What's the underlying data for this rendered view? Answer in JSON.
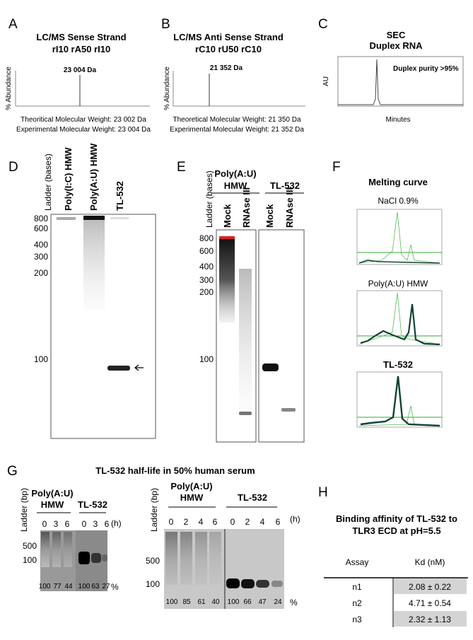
{
  "a": {
    "label": "A",
    "title": [
      "LC/MS Sense Strand",
      "rI10 rA50 rI10"
    ],
    "peak_label": "23 004 Da",
    "y_label": "% Abundance",
    "notes": [
      "Theoritical Molecular Weight: 23 002 Da",
      "Experimental Molecular Weight: 23 004 Da"
    ]
  },
  "b": {
    "label": "B",
    "title": [
      "LC/MS Anti Sense Strand",
      "rC10 rU50 rC10"
    ],
    "peak_label": "21 352 Da",
    "y_label": "% Abundance",
    "notes": [
      "Theoretical Molecular Weight: 21 350 Da",
      "Experimental Molecular Weight: 21 352 Da"
    ]
  },
  "c": {
    "label": "C",
    "title": [
      "SEC",
      "Duplex RNA"
    ],
    "y_label": "AU",
    "annotation": "Duplex purity >95%",
    "x_label": "Minutes"
  },
  "d": {
    "label": "D",
    "ladder_label": "Ladder (bases)",
    "lanes": [
      "Poly(I:C) HMW",
      "Poly(A:U) HMW",
      "TL-532"
    ],
    "markers": [
      800,
      600,
      400,
      300,
      200,
      100
    ]
  },
  "e": {
    "label": "E",
    "ladder_label": "Ladder (bases)",
    "groups": [
      {
        "name": [
          "Poly(A:U)",
          "HMW"
        ],
        "lanes": [
          "Mock",
          "RNAse III"
        ]
      },
      {
        "name": [
          "TL-532"
        ],
        "lanes": [
          "Mock",
          "RNAse III"
        ]
      }
    ],
    "markers": [
      800,
      600,
      400,
      300,
      200,
      100
    ]
  },
  "f": {
    "label": "F",
    "title": "Melting curve",
    "plots": [
      "NaCl 0.9%",
      "Poly(A:U) HMW",
      "TL-532"
    ]
  },
  "g": {
    "label": "G",
    "title": "TL-532 half-life in 50% human serum",
    "left": {
      "ladder_label": "Ladder (bp)",
      "groups": [
        {
          "name": [
            "Poly(A:U)",
            "HMW"
          ],
          "times": [
            0,
            3,
            6
          ],
          "percent": [
            100,
            77,
            44
          ]
        },
        {
          "name": [
            "TL-532"
          ],
          "times": [
            0,
            3,
            6
          ],
          "percent": [
            100,
            63,
            27
          ]
        }
      ],
      "time_unit": "(h)",
      "markers": [
        500,
        100
      ],
      "percent_unit": "%"
    },
    "right": {
      "ladder_label": "Ladder (bp)",
      "groups": [
        {
          "name": [
            "Poly(A:U)",
            "HMW"
          ],
          "times": [
            0,
            2,
            4,
            6
          ],
          "percent": [
            100,
            85,
            61,
            40
          ]
        },
        {
          "name": [
            "TL-532"
          ],
          "times": [
            0,
            2,
            4,
            6
          ],
          "percent": [
            100,
            66,
            47,
            24
          ]
        }
      ],
      "time_unit": "(h)",
      "markers": [
        500,
        100
      ],
      "percent_unit": "%"
    }
  },
  "h": {
    "label": "H",
    "title": [
      "Binding affinity of TL-532 to",
      "TLR3 ECD at pH=5.5"
    ],
    "columns": [
      "Assay",
      "Kd (nM)"
    ],
    "rows": [
      [
        "n1",
        "2.08 ± 0.22"
      ],
      [
        "n2",
        "4.71 ± 0.54"
      ],
      [
        "n3",
        "2.32 ± 1.13"
      ]
    ]
  }
}
